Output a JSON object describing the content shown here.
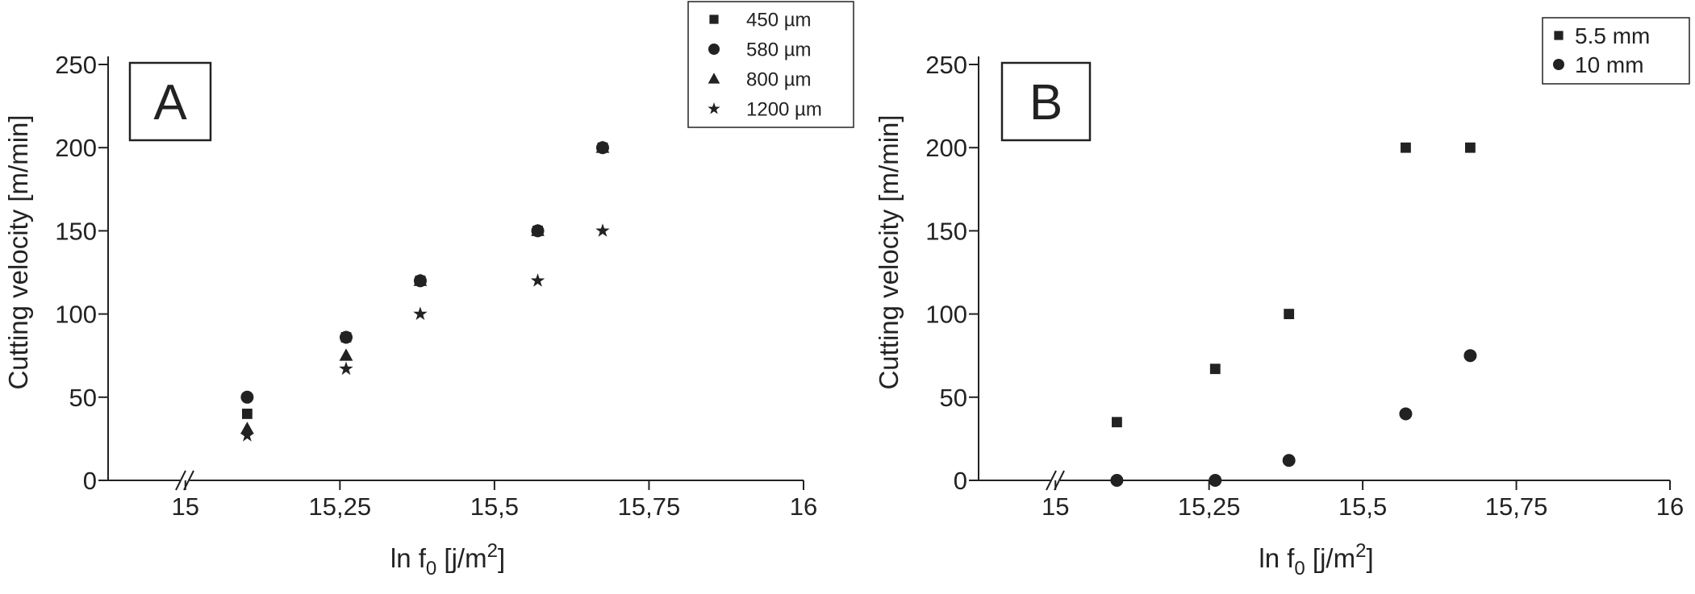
{
  "chart_data": [
    {
      "type": "scatter",
      "panel_label": "A",
      "xlabel": {
        "text": "ln f",
        "sub": "0",
        "text2": " [j/m",
        "sup": "2",
        "end": "]"
      },
      "ylabel": "Cutting velocity [m/min]",
      "xlim": [
        14.875,
        16
      ],
      "ylim": [
        0,
        250
      ],
      "xticks": [
        15,
        {
          "value": 15.25,
          "label": "15,25"
        },
        {
          "value": 15.5,
          "label": "15,5"
        },
        {
          "value": 15.75,
          "label": "15,75"
        },
        16
      ],
      "yticks": [
        0,
        50,
        100,
        150,
        200,
        250
      ],
      "series": [
        {
          "name": "450 µm",
          "marker": "square",
          "color": "#222",
          "x": [
            15.1,
            15.26,
            15.38,
            15.57,
            15.675
          ],
          "values": [
            40,
            86,
            120,
            150,
            200
          ]
        },
        {
          "name": "580 µm",
          "marker": "circle",
          "color": "#222",
          "x": [
            15.1,
            15.26,
            15.38,
            15.57,
            15.675
          ],
          "values": [
            50,
            86,
            120,
            150,
            200
          ]
        },
        {
          "name": "800 µm",
          "marker": "triangle",
          "color": "#222",
          "x": [
            15.1,
            15.26,
            15.38,
            15.57,
            15.675
          ],
          "values": [
            31,
            75,
            120,
            150,
            200
          ]
        },
        {
          "name": "1200 µm",
          "marker": "star",
          "color": "#222",
          "x": [
            15.1,
            15.26,
            15.38,
            15.57,
            15.675
          ],
          "values": [
            27,
            67,
            100,
            120,
            150
          ]
        }
      ]
    },
    {
      "type": "scatter",
      "panel_label": "B",
      "xlabel": {
        "text": "ln f",
        "sub": "0",
        "text2": " [j/m",
        "sup": "2",
        "end": "]"
      },
      "ylabel": "Cutting velocity [m/min]",
      "xlim": [
        14.875,
        16
      ],
      "ylim": [
        0,
        250
      ],
      "xticks": [
        15,
        {
          "value": 15.25,
          "label": "15,25"
        },
        {
          "value": 15.5,
          "label": "15,5"
        },
        {
          "value": 15.75,
          "label": "15,75"
        },
        16
      ],
      "yticks": [
        0,
        50,
        100,
        150,
        200,
        250
      ],
      "series": [
        {
          "name": "5.5 mm",
          "marker": "square",
          "color": "#222",
          "x": [
            15.1,
            15.26,
            15.38,
            15.57,
            15.675
          ],
          "values": [
            35,
            67,
            100,
            200,
            200
          ]
        },
        {
          "name": "10 mm",
          "marker": "circle",
          "color": "#222",
          "x": [
            15.1,
            15.26,
            15.38,
            15.57,
            15.675
          ],
          "values": [
            0,
            0,
            12,
            40,
            75
          ]
        }
      ]
    }
  ]
}
